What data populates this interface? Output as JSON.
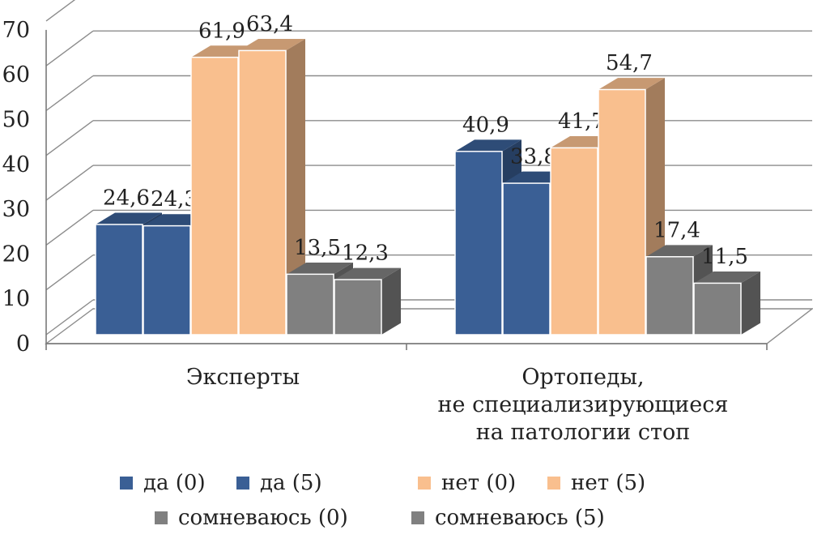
{
  "chart_data": {
    "type": "bar",
    "three_d": true,
    "categories": [
      [
        "Эксперты"
      ],
      [
        "Ортопеды,",
        "не специализирующиеся",
        "на патологии стоп"
      ]
    ],
    "series": [
      {
        "name": "да (0)",
        "values": [
          24.6,
          40.9
        ],
        "color": "#3a5f95"
      },
      {
        "name": "да (5)",
        "values": [
          24.3,
          33.8
        ],
        "color": "#3a5f95"
      },
      {
        "name": "нет (0)",
        "values": [
          61.9,
          41.7
        ],
        "color": "#f9bf8e"
      },
      {
        "name": "нет (5)",
        "values": [
          63.4,
          54.7
        ],
        "color": "#f9bf8e"
      },
      {
        "name": "сомневаюсь (0)",
        "values": [
          13.5,
          17.4
        ],
        "color": "#808080"
      },
      {
        "name": "сомневаюсь (5)",
        "values": [
          12.3,
          11.5
        ],
        "color": "#808080"
      }
    ],
    "data_labels": [
      [
        "24,6",
        "40,9"
      ],
      [
        "24,3",
        "33,8"
      ],
      [
        "61,9",
        "41,7"
      ],
      [
        "63,4",
        "54,7"
      ],
      [
        "13,5",
        "17,4"
      ],
      [
        "12,3",
        "11,5"
      ]
    ],
    "yticks": [
      "0",
      "10",
      "20",
      "30",
      "40",
      "50",
      "60",
      "70"
    ],
    "ylim": [
      0,
      70
    ],
    "grid": true,
    "legend_position": "bottom"
  }
}
